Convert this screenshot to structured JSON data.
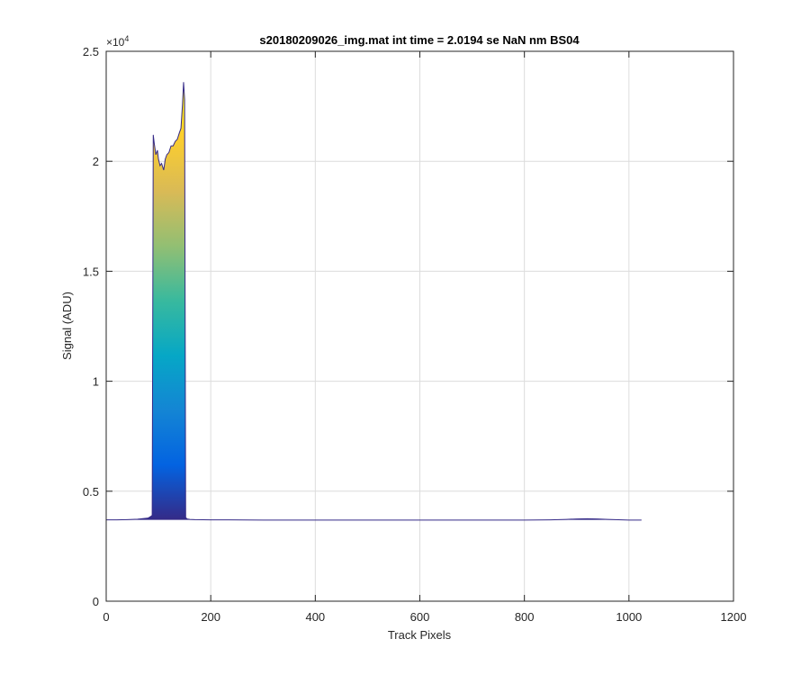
{
  "chart_data": {
    "type": "area",
    "title": "s20180209026_img.mat int time = 2.0194 se  NaN nm BS04",
    "xlabel": "Track Pixels",
    "ylabel": "Signal (ADU)",
    "y_exponent_label": "×10",
    "y_exponent_power": "4",
    "xlim": [
      0,
      1200
    ],
    "ylim": [
      0,
      25000
    ],
    "x_ticks": [
      0,
      200,
      400,
      600,
      800,
      1000,
      1200
    ],
    "x_tick_labels": [
      "0",
      "200",
      "400",
      "600",
      "800",
      "1000",
      "1200"
    ],
    "y_ticks": [
      0,
      5000,
      10000,
      15000,
      20000,
      25000
    ],
    "y_tick_labels": [
      "0",
      "0.5",
      "1",
      "1.5",
      "2",
      "2.5"
    ],
    "grid": true,
    "colormap": "parula",
    "colormap_colors": [
      "#352a87",
      "#0363e1",
      "#1485d4",
      "#06a7c6",
      "#38b99e",
      "#92bf73",
      "#d9ba56",
      "#fcce2e",
      "#f9fb0e"
    ],
    "line_color": "#352a87",
    "baseline_level": 3700,
    "series": [
      {
        "x": [
          0,
          20,
          40,
          60,
          80,
          85,
          88,
          90,
          92,
          95,
          98,
          100,
          103,
          106,
          110,
          113,
          116,
          120,
          124,
          128,
          132,
          136,
          140,
          143,
          146,
          148,
          150,
          152,
          155,
          160,
          170,
          200,
          300,
          400,
          500,
          600,
          700,
          800,
          850,
          880,
          900,
          920,
          940,
          960,
          1000,
          1024
        ],
        "y": [
          3700,
          3700,
          3710,
          3730,
          3780,
          3850,
          3900,
          21200,
          20800,
          20300,
          20500,
          20100,
          19800,
          19900,
          19600,
          20100,
          20300,
          20400,
          20700,
          20700,
          20900,
          21000,
          21300,
          21500,
          22600,
          23600,
          22800,
          3800,
          3740,
          3720,
          3710,
          3700,
          3690,
          3690,
          3690,
          3690,
          3690,
          3690,
          3700,
          3720,
          3740,
          3750,
          3740,
          3720,
          3690,
          3690
        ]
      }
    ]
  }
}
